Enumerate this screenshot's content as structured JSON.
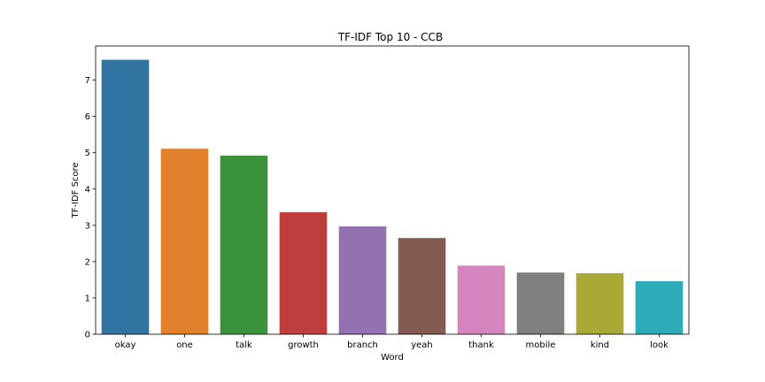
{
  "chart_data": {
    "type": "bar",
    "title": "TF-IDF Top 10 - CCB",
    "xlabel": "Word",
    "ylabel": "TF-IDF Score",
    "categories": [
      "okay",
      "one",
      "talk",
      "growth",
      "branch",
      "yeah",
      "thank",
      "mobile",
      "kind",
      "look"
    ],
    "values": [
      7.56,
      5.11,
      4.92,
      3.36,
      2.97,
      2.65,
      1.89,
      1.7,
      1.68,
      1.46
    ],
    "colors": [
      "#3274a1",
      "#e1812c",
      "#3a923a",
      "#c03d3e",
      "#9372b2",
      "#845b53",
      "#d684bd",
      "#7f7f7f",
      "#a9aa35",
      "#2eabb8"
    ],
    "ylim": [
      0,
      7.94
    ],
    "yticks": [
      0,
      1,
      2,
      3,
      4,
      5,
      6,
      7
    ],
    "grid": false,
    "legend": "none"
  }
}
